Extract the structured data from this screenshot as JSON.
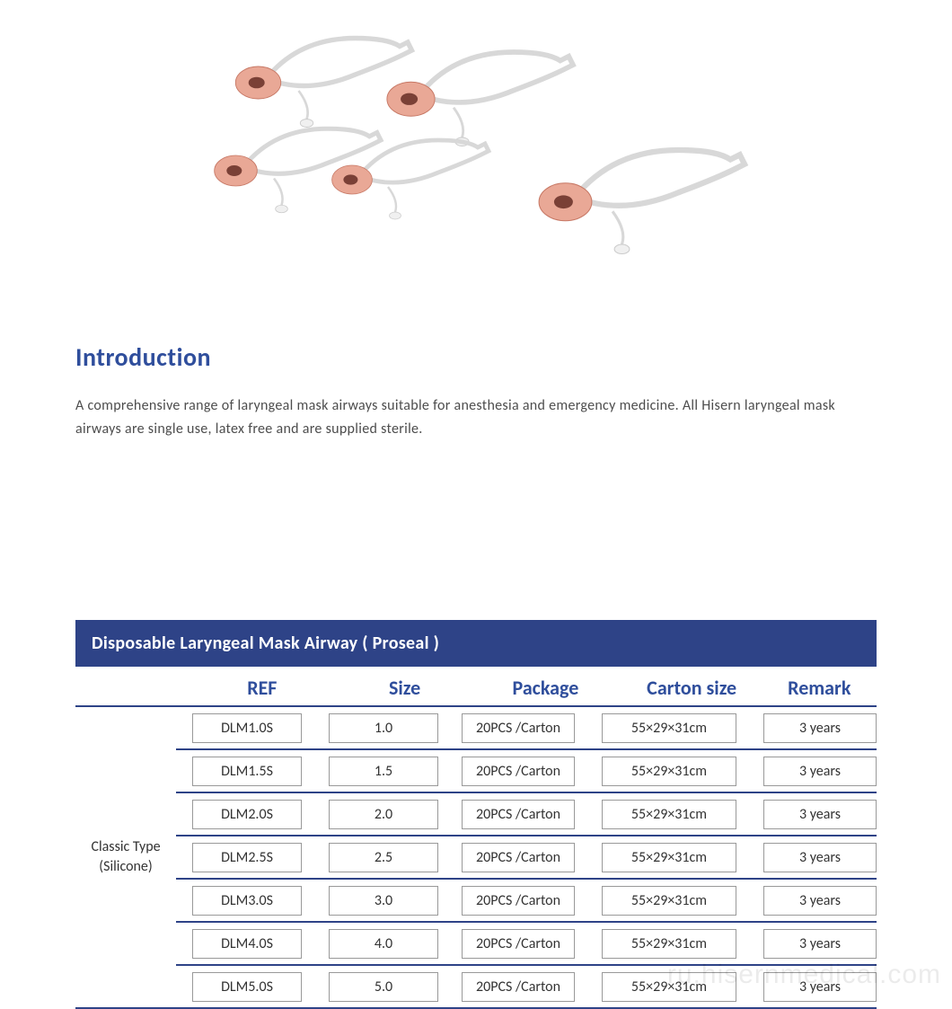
{
  "colors": {
    "heading_blue": "#2f4e9c",
    "body_text": "#4d4d4d",
    "header_bar_bg": "#2e4387",
    "header_bar_text": "#ffffff",
    "column_header_text": "#2f4e9c",
    "divider": "#2e4387",
    "cell_border": "#999999",
    "watermark": "rgba(0,0,0,0.08)",
    "mask_fill": "#e9a896",
    "mask_stroke": "#c77865",
    "tube_stroke": "#d8d8d8"
  },
  "intro": {
    "title": "Introduction",
    "text": "A comprehensive range of laryngeal mask airways suitable for anesthesia and emergency medicine. All Hisern laryngeal mask airways are single use, latex free and are supplied sterile."
  },
  "table": {
    "title": "Disposable Laryngeal Mask Airway ( Proseal )",
    "columns": {
      "ref": "REF",
      "size": "Size",
      "package": "Package",
      "carton_size": "Carton size",
      "remark": "Remark"
    },
    "type_label_line1": "Classic Type",
    "type_label_line2": "(Silicone)",
    "rows": [
      {
        "ref": "DLM1.0S",
        "size": "1.0",
        "package": "20PCS /Carton",
        "carton_size": "55×29×31cm",
        "remark": "3 years"
      },
      {
        "ref": "DLM1.5S",
        "size": "1.5",
        "package": "20PCS /Carton",
        "carton_size": "55×29×31cm",
        "remark": "3 years"
      },
      {
        "ref": "DLM2.0S",
        "size": "2.0",
        "package": "20PCS /Carton",
        "carton_size": "55×29×31cm",
        "remark": "3 years"
      },
      {
        "ref": "DLM2.5S",
        "size": "2.5",
        "package": "20PCS /Carton",
        "carton_size": "55×29×31cm",
        "remark": "3 years"
      },
      {
        "ref": "DLM3.0S",
        "size": "3.0",
        "package": "20PCS /Carton",
        "carton_size": "55×29×31cm",
        "remark": "3 years"
      },
      {
        "ref": "DLM4.0S",
        "size": "4.0",
        "package": "20PCS /Carton",
        "carton_size": "55×29×31cm",
        "remark": "3 years"
      },
      {
        "ref": "DLM5.0S",
        "size": "5.0",
        "package": "20PCS /Carton",
        "carton_size": "55×29×31cm",
        "remark": "3 years"
      }
    ]
  },
  "watermark": "ru.hisernmedical.com"
}
